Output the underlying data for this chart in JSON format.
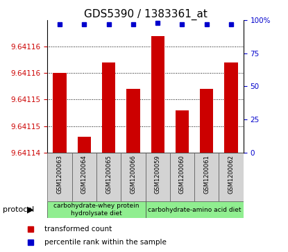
{
  "title": "GDS5390 / 1383361_at",
  "samples": [
    "GSM1200063",
    "GSM1200064",
    "GSM1200065",
    "GSM1200066",
    "GSM1200059",
    "GSM1200060",
    "GSM1200061",
    "GSM1200062"
  ],
  "bar_values": [
    9.641155,
    9.641143,
    9.641157,
    9.641152,
    9.641162,
    9.641148,
    9.641152,
    9.641157
  ],
  "percentile_values": [
    97,
    97,
    97,
    97,
    98,
    97,
    97,
    97
  ],
  "y_min": 9.64114,
  "y_max": 9.641165,
  "left_ticks": [
    9.64114,
    9.641145,
    9.64115,
    9.641155,
    9.64116
  ],
  "left_tick_labels": [
    "9.64114",
    "9.64115",
    "9.64115",
    "9.64116",
    "9.64116"
  ],
  "right_ticks": [
    0,
    25,
    50,
    75,
    100
  ],
  "right_tick_labels": [
    "0",
    "25",
    "50",
    "75",
    "100%"
  ],
  "bar_color": "#cc0000",
  "dot_color": "#0000cc",
  "protocol_groups": [
    {
      "label": "carbohydrate-whey protein\nhydrolysate diet",
      "start": 0,
      "end": 4,
      "color": "#90ee90"
    },
    {
      "label": "carbohydrate-amino acid diet",
      "start": 4,
      "end": 8,
      "color": "#90ee90"
    }
  ],
  "legend_bar_label": "transformed count",
  "legend_dot_label": "percentile rank within the sample",
  "protocol_label": "protocol",
  "bar_color_legend": "#cc0000",
  "dot_color_legend": "#0000cc",
  "left_color": "#cc0000",
  "right_color": "#0000cc",
  "title_fontsize": 11,
  "tick_fontsize": 7.5,
  "sample_fontsize": 6,
  "proto_fontsize": 6.5,
  "legend_fontsize": 7.5,
  "bar_width": 0.55
}
